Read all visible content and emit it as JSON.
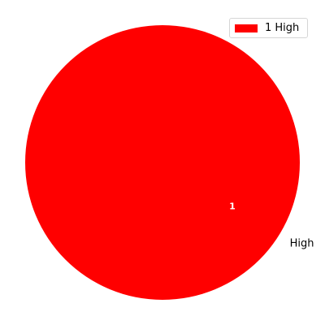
{
  "chart_data": {
    "type": "pie",
    "slices": [
      {
        "label": "High",
        "value": 1,
        "value_label": "1",
        "color": "#ff0000"
      }
    ],
    "legend": {
      "placement": "top-right",
      "entries": [
        {
          "label": "1 High",
          "color": "#ff0000"
        }
      ]
    },
    "title": "",
    "grid": false
  }
}
